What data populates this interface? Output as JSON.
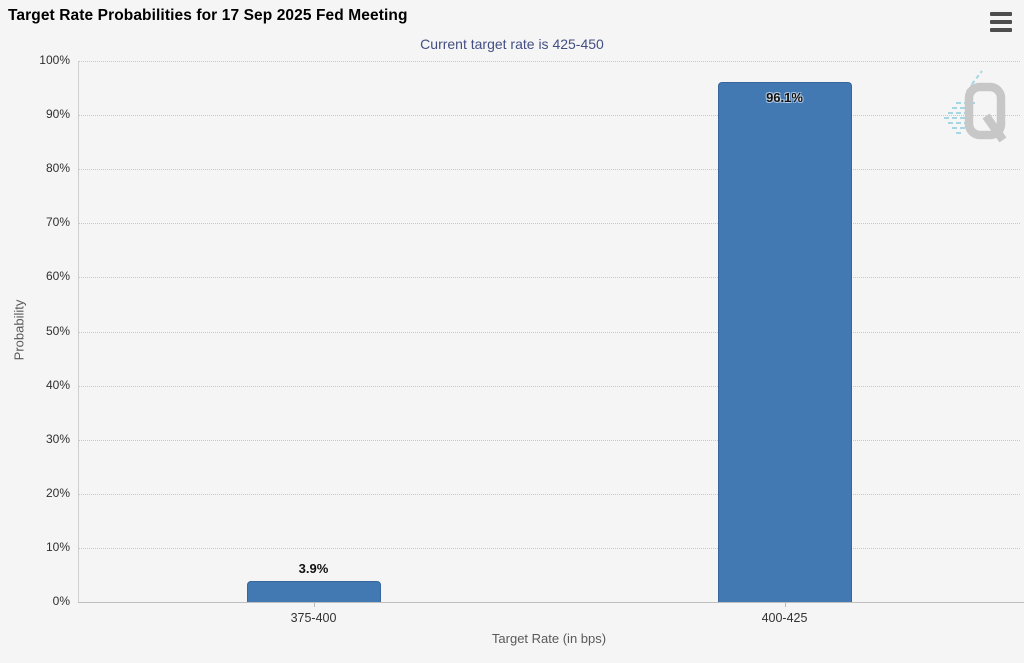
{
  "chart_data": {
    "type": "bar",
    "title": "Target Rate Probabilities for 17 Sep 2025 Fed Meeting",
    "subtitle": "Current target rate is 425-450",
    "xlabel": "Target Rate (in bps)",
    "ylabel": "Probability",
    "categories": [
      "375-400",
      "400-425"
    ],
    "values": [
      3.9,
      96.1
    ],
    "data_labels": [
      "3.9%",
      "96.1%"
    ],
    "ylim": [
      0,
      100
    ],
    "y_ticks": [
      "0%",
      "10%",
      "20%",
      "30%",
      "40%",
      "50%",
      "60%",
      "70%",
      "80%",
      "90%",
      "100%"
    ],
    "grid": "horizontal-dotted",
    "legend": "none",
    "bar_color": "#4379b2",
    "bar_border_color": "#38659b",
    "subtitle_color": "#434f83"
  },
  "menu": {
    "icon": "hamburger-icon"
  },
  "watermark": {
    "name": "quikstrike-q-logo",
    "letter": "Q"
  }
}
